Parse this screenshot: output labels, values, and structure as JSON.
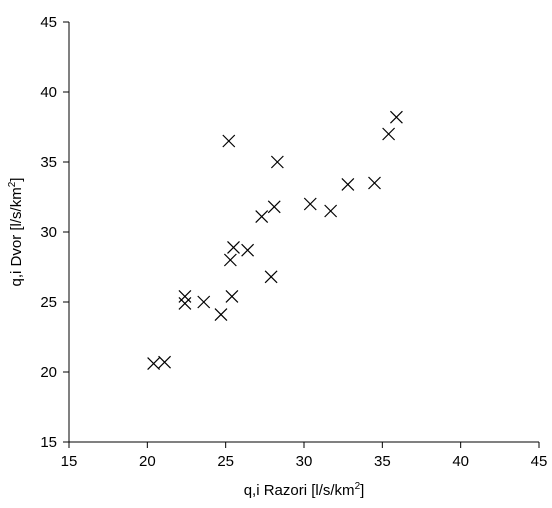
{
  "chart_data": {
    "type": "scatter",
    "title": "",
    "xlabel": "q,i Razori [l/s/km",
    "xlabel_sup": "2",
    "xlabel_end": "]",
    "ylabel": "q,i Dvor [l/s/km",
    "ylabel_sup": "2",
    "ylabel_end": "]",
    "xlim": [
      15,
      45
    ],
    "ylim": [
      15,
      45
    ],
    "x_ticks": [
      15,
      20,
      25,
      30,
      35,
      40,
      45
    ],
    "y_ticks": [
      15,
      20,
      25,
      30,
      35,
      40,
      45
    ],
    "grid": false,
    "legend": "none",
    "marker": "x",
    "marker_color": "#000000",
    "x": [
      20.4,
      21.1,
      22.4,
      22.4,
      23.6,
      24.7,
      25.4,
      25.3,
      25.5,
      26.4,
      25.2,
      27.3,
      28.1,
      28.3,
      27.9,
      30.4,
      31.7,
      32.8,
      34.5,
      35.4,
      35.9
    ],
    "y": [
      20.6,
      20.7,
      25.4,
      24.9,
      25.0,
      24.1,
      25.4,
      28.0,
      28.9,
      28.7,
      36.5,
      31.1,
      31.8,
      35.0,
      26.8,
      32.0,
      31.5,
      33.4,
      33.5,
      37.0,
      38.2
    ]
  }
}
